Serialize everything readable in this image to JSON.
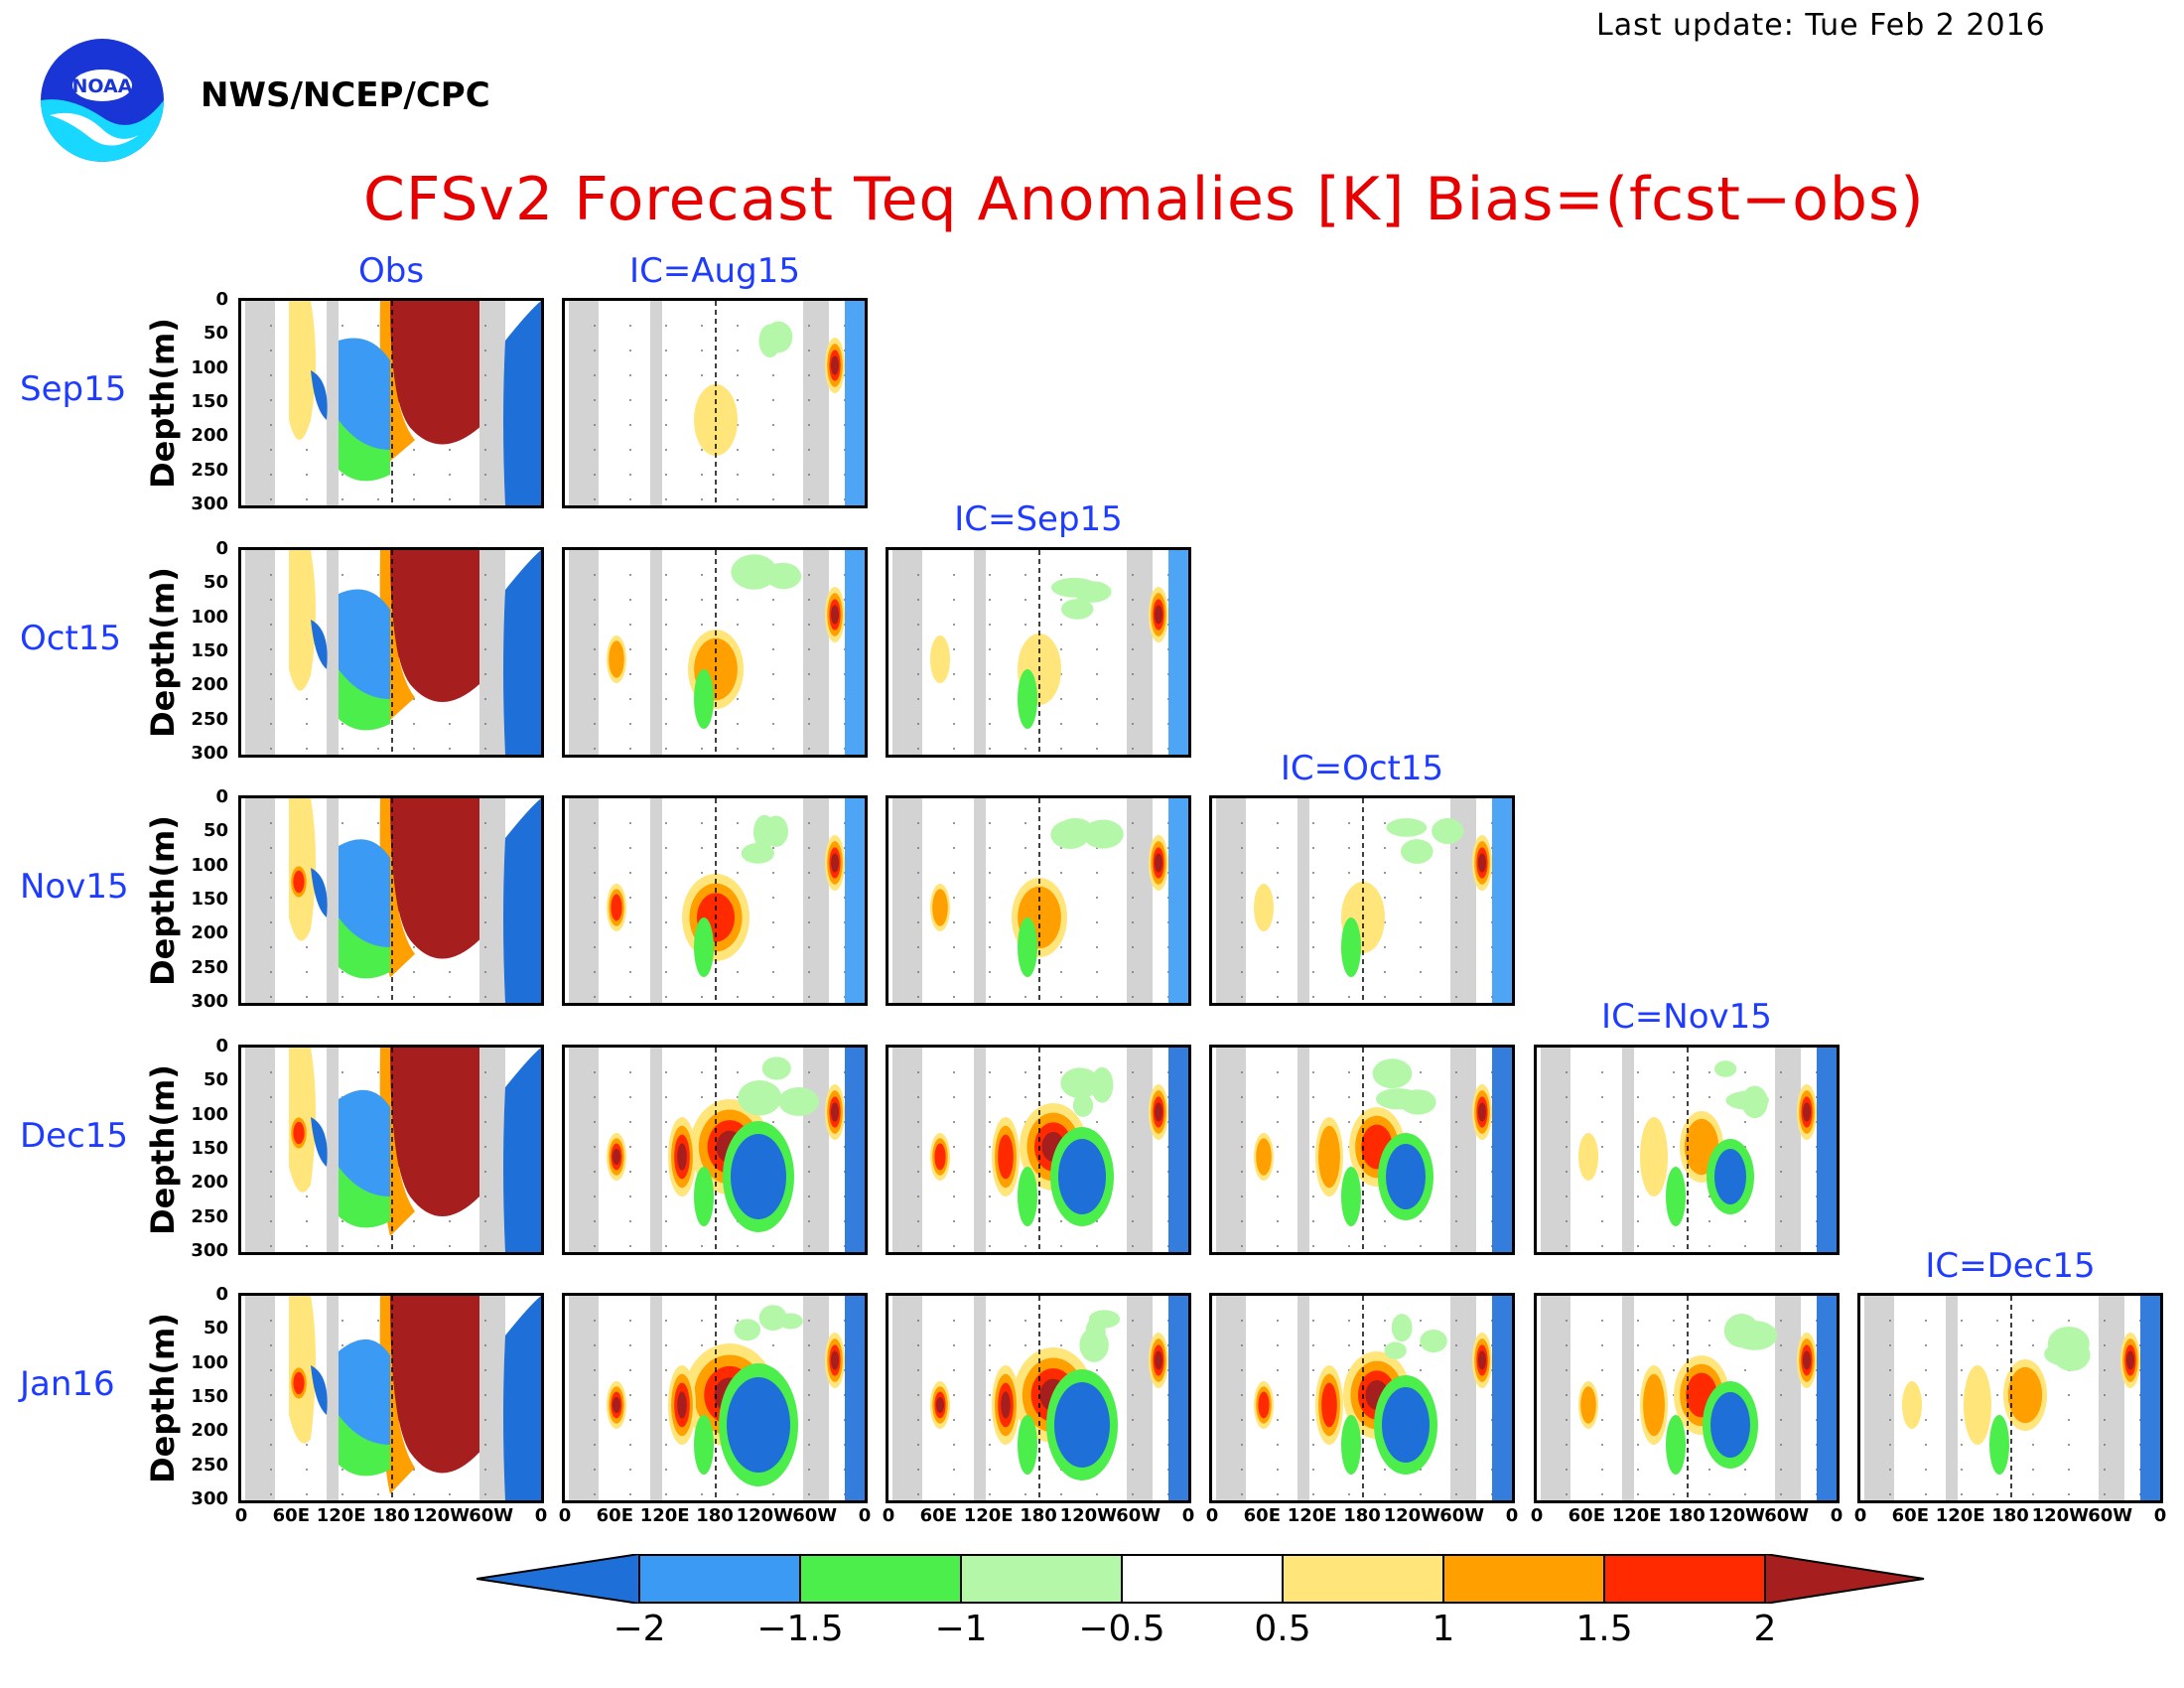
{
  "header": {
    "last_update": "Last update: Tue Feb 2 2016",
    "agency": "NWS/NCEP/CPC",
    "logo_text": "NOAA",
    "title": "CFSv2 Forecast Teq Anomalies [K] Bias=(fcst−obs)"
  },
  "colors": {
    "title": "#e60000",
    "labels": "#1e3cff",
    "land_mask": "#d3d3d3"
  },
  "chart_data": {
    "type": "heatmap",
    "ylabel": "Depth(m)",
    "ylim": [
      300,
      0
    ],
    "yticks": [
      "0",
      "50",
      "100",
      "150",
      "200",
      "250",
      "300"
    ],
    "xticks": [
      "0",
      "60E",
      "120E",
      "180",
      "120W",
      "60W",
      "0"
    ],
    "columns": [
      "Obs",
      "IC=Aug15",
      "IC=Sep15",
      "IC=Oct15",
      "IC=Nov15",
      "IC=Dec15"
    ],
    "rows": [
      "Sep15",
      "Oct15",
      "Nov15",
      "Dec15",
      "Jan16"
    ],
    "colorbar": {
      "levels": [
        "−2",
        "−1.5",
        "−1",
        "−0.5",
        "0.5",
        "1",
        "1.5",
        "2"
      ],
      "colors": [
        "#1f6fd8",
        "#3b9bf4",
        "#4bee4b",
        "#b4f7a8",
        "#ffffff",
        "#ffe57a",
        "#ff9f00",
        "#ff2a00",
        "#a61e1e"
      ]
    },
    "dominant_features": [
      "Obs: strong warm anomaly (>2 K) in central-eastern Pacific 0–200 m, cold anomaly (<−1.5 K) in western Pacific thermocline",
      "Forecasts: warm anomaly core near 180 at 100–200 m strengthening with lead time, cold anomaly developing west of 180 in later targets"
    ]
  }
}
